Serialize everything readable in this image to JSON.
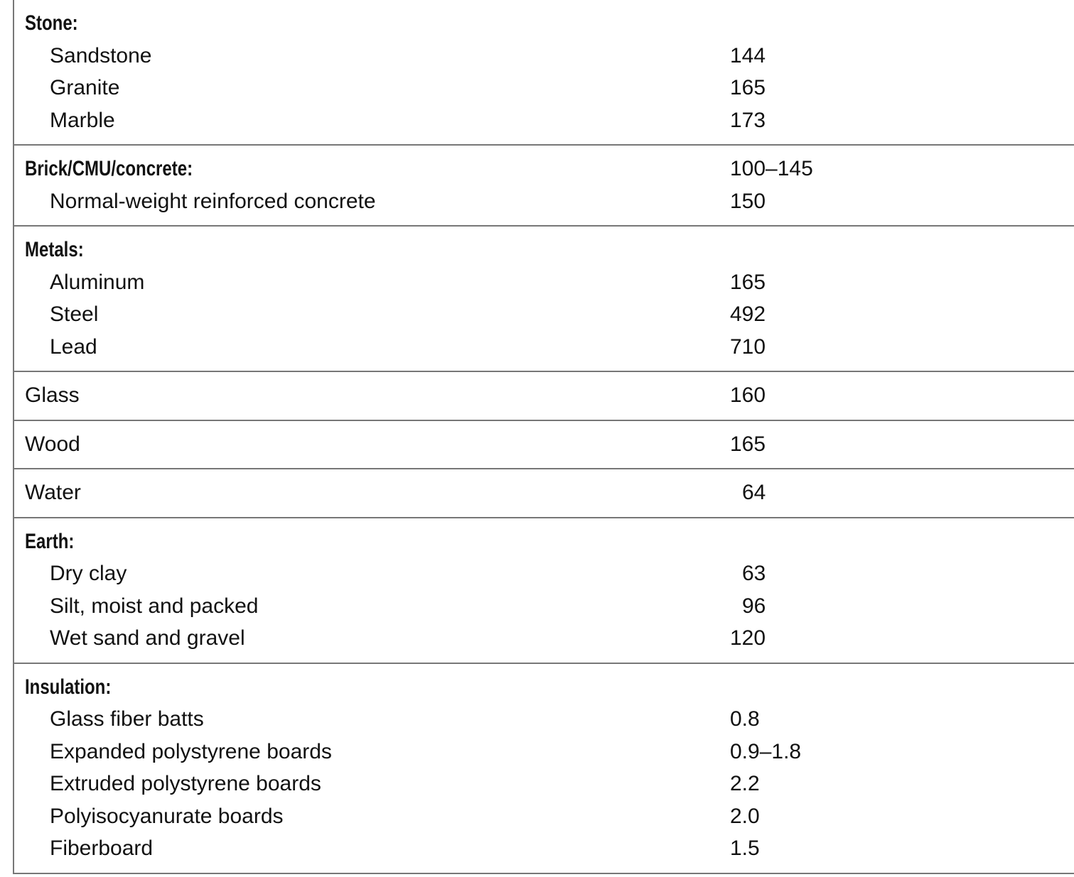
{
  "groups": [
    {
      "heading": "Stone:",
      "value": "",
      "items": [
        {
          "label": "Sandstone",
          "value": "144"
        },
        {
          "label": "Granite",
          "value": "165"
        },
        {
          "label": "Marble",
          "value": "173"
        }
      ]
    },
    {
      "heading": "Brick/CMU/concrete:",
      "value": "100–145",
      "items": [
        {
          "label": "Normal-weight reinforced concrete",
          "value": "150"
        }
      ]
    },
    {
      "heading": "Metals:",
      "value": "",
      "items": [
        {
          "label": "Aluminum",
          "value": "165"
        },
        {
          "label": "Steel",
          "value": "492"
        },
        {
          "label": "Lead",
          "value": "710"
        }
      ]
    },
    {
      "label": "Glass",
      "value": "160"
    },
    {
      "label": "Wood",
      "value": "165"
    },
    {
      "label": "Water",
      "value": "64"
    },
    {
      "heading": "Earth:",
      "value": "",
      "items": [
        {
          "label": "Dry clay",
          "value": "63"
        },
        {
          "label": "Silt, moist and packed",
          "value": "96"
        },
        {
          "label": "Wet sand and gravel",
          "value": "120"
        }
      ]
    },
    {
      "heading": "Insulation:",
      "value": "",
      "items": [
        {
          "label": "Glass fiber batts",
          "value": "0.8"
        },
        {
          "label": "Expanded polystyrene boards",
          "value": "0.9–1.8"
        },
        {
          "label": "Extruded polystyrene boards",
          "value": "2.2"
        },
        {
          "label": "Polyisocyanurate boards",
          "value": "2.0"
        },
        {
          "label": "Fiberboard",
          "value": "1.5"
        }
      ]
    }
  ]
}
